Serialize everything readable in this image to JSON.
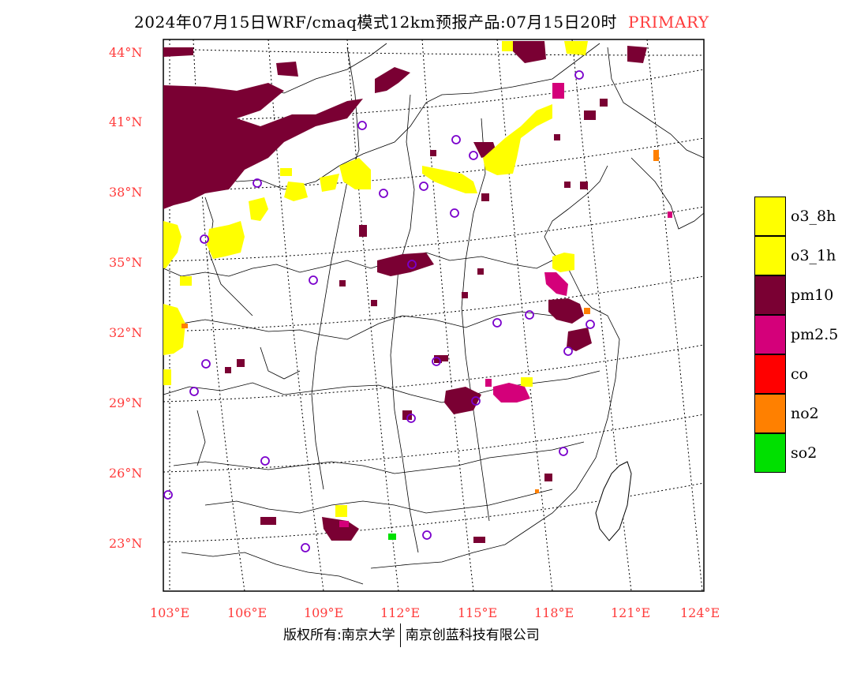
{
  "header": {
    "title": "2024年07月15日WRF/cmaq模式12km预报产品:07月15日20时",
    "tag": "PRIMARY"
  },
  "axes": {
    "lat_labels": [
      "44°N",
      "41°N",
      "38°N",
      "35°N",
      "32°N",
      "29°N",
      "26°N",
      "23°N"
    ],
    "lon_labels": [
      "103°E",
      "106°E",
      "109°E",
      "112°E",
      "115°E",
      "118°E",
      "121°E",
      "124°E"
    ]
  },
  "legend": {
    "items": [
      {
        "label": "o3_8h",
        "color": "#ffff00"
      },
      {
        "label": "o3_1h",
        "color": "#ffff00"
      },
      {
        "label": "pm10",
        "color": "#7a0033"
      },
      {
        "label": "pm2.5",
        "color": "#d4007a"
      },
      {
        "label": "co",
        "color": "#ff0000"
      },
      {
        "label": "no2",
        "color": "#ff8000"
      },
      {
        "label": "so2",
        "color": "#00e000"
      }
    ]
  },
  "footer": {
    "copyright": "版权所有:南京大学",
    "company": "南京创蓝科技有限公司"
  }
}
